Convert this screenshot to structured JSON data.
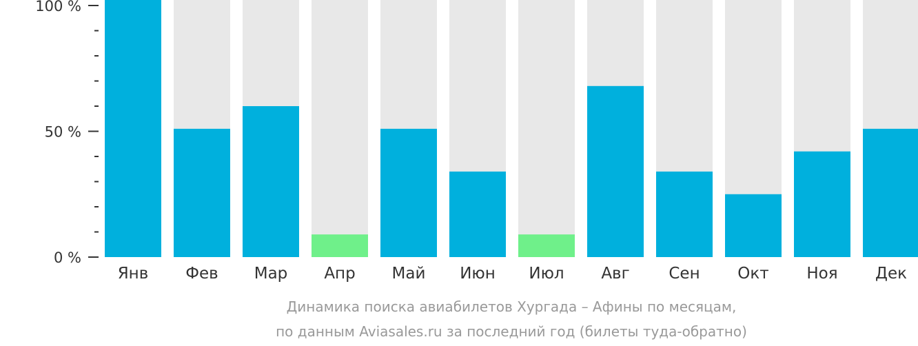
{
  "chart_data": {
    "type": "bar",
    "categories": [
      "Янв",
      "Фев",
      "Мар",
      "Апр",
      "Май",
      "Июн",
      "Июл",
      "Авг",
      "Сен",
      "Окт",
      "Ноя",
      "Дек"
    ],
    "values": [
      100,
      51,
      60,
      9,
      51,
      34,
      9,
      68,
      34,
      25,
      42,
      51
    ],
    "ylim": [
      0,
      100
    ],
    "yticks": [
      {
        "value": 100,
        "label": "100 %"
      },
      {
        "value": 50,
        "label": "50 %"
      },
      {
        "value": 0,
        "label": "0 %"
      }
    ],
    "minor_ticks": [
      90,
      80,
      70,
      60,
      40,
      30,
      20,
      10
    ],
    "xlabel": "",
    "ylabel": "",
    "grid": false,
    "legend": "none",
    "title": "",
    "caption_lines": [
      "Динамика поиска авиабилетов Хургада – Афины по месяцам,",
      "по данным Aviasales.ru за последний год (билеты туда-обратно)"
    ],
    "colors": {
      "bar_default": "#00b0dd",
      "bar_low": "#6ff08a",
      "bar_background": "#e8e8e8",
      "axis": "#333333",
      "caption": "#999999"
    },
    "low_threshold": 15
  }
}
